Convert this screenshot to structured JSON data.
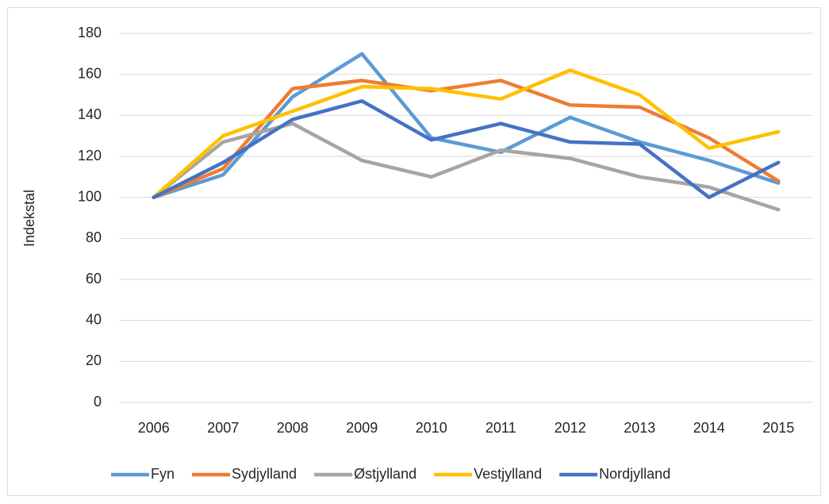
{
  "chart_data": {
    "type": "line",
    "y_axis_label": "Indekstal",
    "categories": [
      "2006",
      "2007",
      "2008",
      "2009",
      "2010",
      "2011",
      "2012",
      "2013",
      "2014",
      "2015"
    ],
    "series": [
      {
        "name": "Fyn",
        "color": "#5b9bd5",
        "values": [
          100,
          111,
          149,
          170,
          129,
          122,
          139,
          127,
          118,
          107
        ]
      },
      {
        "name": "Sydjylland",
        "color": "#ed7d31",
        "values": [
          100,
          114,
          153,
          157,
          152,
          157,
          145,
          144,
          129,
          108
        ]
      },
      {
        "name": "Østjylland",
        "color": "#a5a5a5",
        "values": [
          100,
          127,
          136,
          118,
          110,
          123,
          119,
          110,
          105,
          94
        ]
      },
      {
        "name": "Vestjylland",
        "color": "#ffc000",
        "values": [
          100,
          130,
          142,
          154,
          153,
          148,
          162,
          150,
          124,
          132
        ]
      },
      {
        "name": "Nordjylland",
        "color": "#4472c4",
        "values": [
          100,
          117,
          138,
          147,
          128,
          136,
          127,
          126,
          100,
          117
        ]
      }
    ],
    "ylim": [
      0,
      180
    ],
    "yticks": [
      0,
      20,
      40,
      60,
      80,
      100,
      120,
      140,
      160,
      180
    ],
    "grid": true,
    "legend": "bottom"
  }
}
